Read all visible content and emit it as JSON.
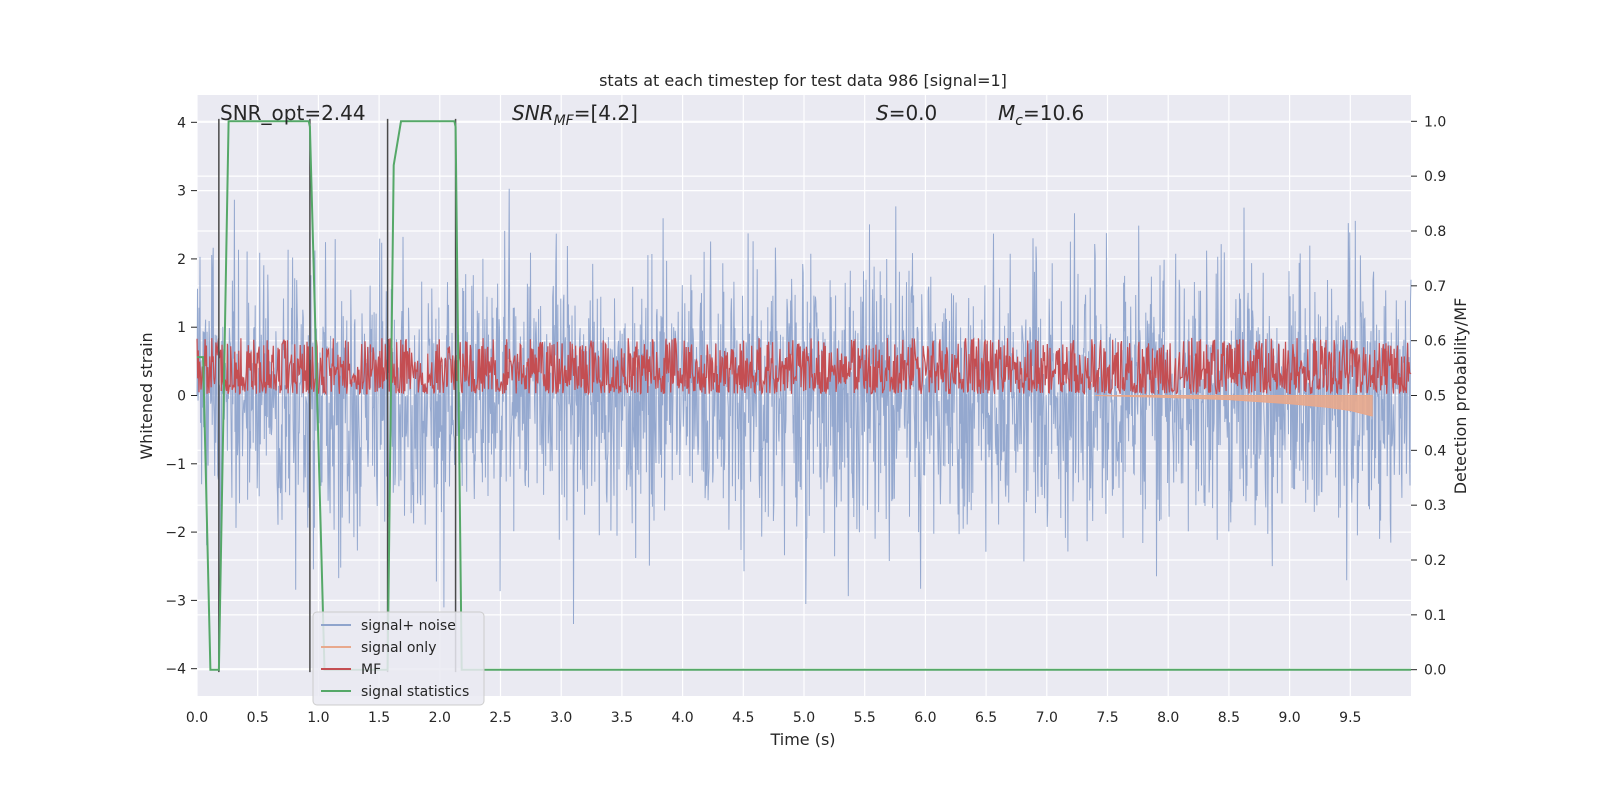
{
  "chart_data": {
    "type": "line",
    "title": "stats at each timestep for test data 986 [signal=1]",
    "xlabel": "Time (s)",
    "ylabel": "Whitened strain",
    "ylabel_right": "Detection probability/MF",
    "xlim": [
      0.0,
      10.0
    ],
    "ylim": [
      -4.4,
      4.4
    ],
    "ylim_right": [
      -0.048,
      1.048
    ],
    "xticks": [
      "0.0",
      "0.5",
      "1.0",
      "1.5",
      "2.0",
      "2.5",
      "3.0",
      "3.5",
      "4.0",
      "4.5",
      "5.0",
      "5.5",
      "6.0",
      "6.5",
      "7.0",
      "7.5",
      "8.0",
      "8.5",
      "9.0",
      "9.5"
    ],
    "yticks": [
      "4",
      "3",
      "2",
      "1",
      "0",
      "−1",
      "−2",
      "−3",
      "−4"
    ],
    "yticks_right": [
      "1.0",
      "0.9",
      "0.8",
      "0.7",
      "0.6",
      "0.5",
      "0.4",
      "0.3",
      "0.2",
      "0.1",
      "0.0"
    ],
    "grid": true,
    "legend_position": "lower-left",
    "annotations": {
      "snr_opt": "SNR_opt=2.44",
      "snr_mf_label": "SNR",
      "snr_mf_sub": "MF",
      "snr_mf_value": "=[4.2]",
      "s_label": "S",
      "s_value": "=0.0",
      "mc_label": "M",
      "mc_sub": "c",
      "mc_value": "=10.6"
    },
    "series": [
      {
        "name": "signal+ noise",
        "color": "#8fa4cc",
        "axis": "left",
        "description_noise": {
          "amplitude_std": 1.0,
          "min": -4.0,
          "max": 3.8
        }
      },
      {
        "name": "signal only",
        "color": "#e8a88c",
        "axis": "left",
        "envelope": {
          "x": [
            7.4,
            8.0,
            8.5,
            9.0,
            9.3,
            9.5,
            9.68
          ],
          "y_low": [
            0.0,
            -0.03,
            -0.06,
            -0.12,
            -0.17,
            -0.22,
            -0.3
          ],
          "y_high": [
            0.0,
            0.0,
            0.0,
            0.0,
            0.0,
            0.0,
            0.0
          ]
        }
      },
      {
        "name": "MF",
        "color": "#c44e52",
        "axis": "right",
        "range": [
          0.503,
          0.605
        ]
      },
      {
        "name": "signal statistics",
        "color": "#55a868",
        "axis": "right",
        "x": [
          0.0,
          0.05,
          0.11,
          0.18,
          0.26,
          0.92,
          0.93,
          1.05,
          1.57,
          1.62,
          1.68,
          2.12,
          2.13,
          2.18,
          2.25,
          10.0
        ],
        "y": [
          0.57,
          0.57,
          0.0,
          0.0,
          1.0,
          1.0,
          0.99,
          0.0,
          0.0,
          0.92,
          1.0,
          1.0,
          0.99,
          0.0,
          0.0,
          0.0
        ]
      }
    ],
    "vertical_markers_x": [
      0.18,
      0.93,
      1.57,
      2.13
    ]
  }
}
